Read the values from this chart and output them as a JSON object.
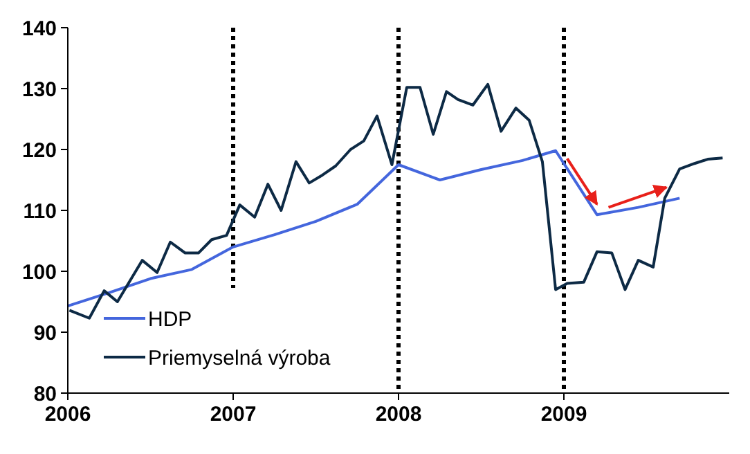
{
  "chart_data": {
    "type": "line",
    "xlim": [
      2006,
      2010
    ],
    "xticks": [
      {
        "value": 2006,
        "label": "2006"
      },
      {
        "value": 2007,
        "label": "2007"
      },
      {
        "value": 2008,
        "label": "2008"
      },
      {
        "value": 2009,
        "label": "2009"
      }
    ],
    "ylim": [
      80,
      140
    ],
    "yticks": [
      80,
      90,
      100,
      110,
      120,
      130,
      140
    ],
    "grid": false,
    "legend": "bottom left",
    "line_style": "solid",
    "marker": "none",
    "series": [
      {
        "name": "HDP",
        "color": "#4466dd",
        "x": [
          2006,
          2006.25,
          2006.5,
          2006.75,
          2007,
          2007.25,
          2007.5,
          2007.75,
          2008,
          2008.25,
          2008.5,
          2008.75,
          2008.95,
          2009.2,
          2009.45,
          2009.7
        ],
        "values": [
          94.3,
          96.5,
          98.8,
          100.3,
          104,
          106,
          108.2,
          111,
          117.5,
          115,
          116.7,
          118.2,
          119.8,
          109.3,
          110.5,
          112
        ]
      },
      {
        "name": "Priemyselná výroba",
        "color": "#0d2a45",
        "x": [
          2006.01,
          2006.13,
          2006.22,
          2006.3,
          2006.45,
          2006.54,
          2006.62,
          2006.71,
          2006.79,
          2006.87,
          2006.96,
          2007.04,
          2007.13,
          2007.21,
          2007.29,
          2007.38,
          2007.46,
          2007.54,
          2007.62,
          2007.71,
          2007.79,
          2007.87,
          2007.96,
          2008.05,
          2008.13,
          2008.21,
          2008.29,
          2008.36,
          2008.45,
          2008.54,
          2008.62,
          2008.71,
          2008.79,
          2008.87,
          2008.95,
          2009.02,
          2009.12,
          2009.2,
          2009.29,
          2009.37,
          2009.45,
          2009.54,
          2009.61,
          2009.7,
          2009.79,
          2009.87,
          2009.96
        ],
        "values": [
          93.6,
          92.3,
          96.8,
          95,
          101.8,
          99.8,
          104.8,
          103,
          103,
          105.2,
          105.9,
          110.9,
          108.9,
          114.3,
          110,
          118,
          114.5,
          115.8,
          117.3,
          120,
          121.4,
          125.5,
          117.5,
          130.2,
          130.2,
          122.5,
          129.5,
          128.2,
          127.3,
          130.7,
          123,
          126.8,
          124.8,
          118,
          97,
          98,
          98.2,
          103.2,
          103,
          97,
          101.8,
          100.7,
          112,
          116.8,
          117.7,
          118.4,
          118.6
        ]
      }
    ],
    "ref_lines": [
      {
        "axis": "x",
        "value": 2007,
        "color": "#000000",
        "line_style": "dotted"
      },
      {
        "axis": "x",
        "value": 2008,
        "color": "#000000",
        "line_style": "dotted"
      },
      {
        "axis": "x",
        "value": 2009,
        "color": "#000000",
        "line_style": "dotted"
      }
    ]
  }
}
